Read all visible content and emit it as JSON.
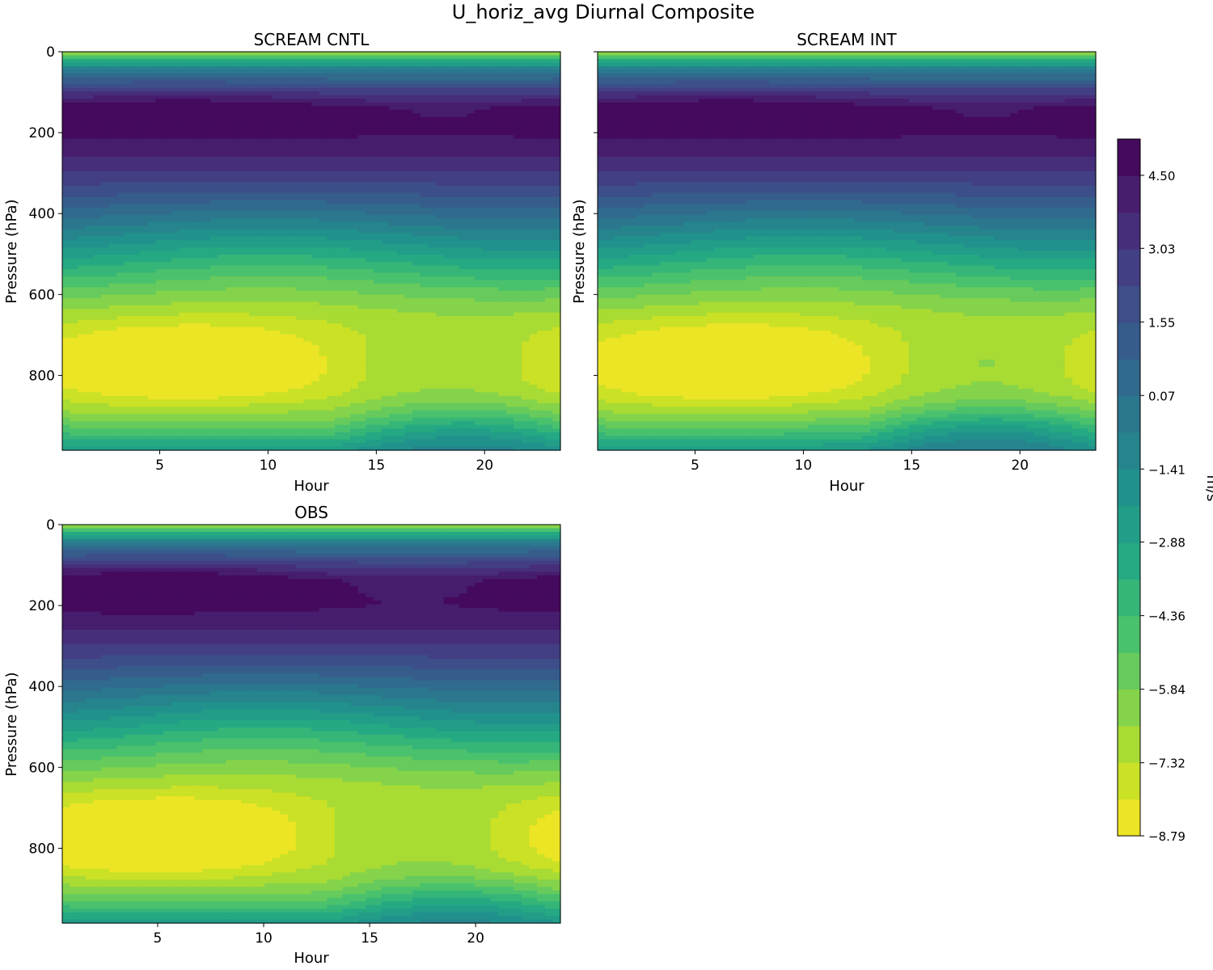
{
  "chart_data": {
    "type": "contourf",
    "title": "U_horiz_avg Diurnal Composite",
    "colorbar": {
      "label": "m/s",
      "tick_labels": [
        "4.50",
        "3.03",
        "1.55",
        "0.07",
        "−1.41",
        "−2.88",
        "−4.36",
        "−5.84",
        "−7.32",
        "−8.79"
      ],
      "tick_values": [
        4.5,
        3.03,
        1.55,
        0.07,
        -1.41,
        -2.88,
        -4.36,
        -5.84,
        -7.32,
        -8.79
      ],
      "range": [
        -8.79,
        5.23
      ],
      "n_levels": 19,
      "colormap": [
        "#440154",
        "#482475",
        "#414487",
        "#355f8d",
        "#2a788e",
        "#21918c",
        "#22a884",
        "#44bf70",
        "#7ad151",
        "#bddf26",
        "#fde725"
      ]
    },
    "panels": [
      {
        "title": "SCREAM CNTL",
        "xlabel": "Hour",
        "ylabel": "Pressure (hPa)",
        "xlim": [
          0.5,
          23.5
        ],
        "ylim": [
          985,
          0
        ],
        "xticks": [
          5,
          10,
          15,
          20
        ],
        "yticks": [
          0,
          200,
          400,
          600,
          800
        ],
        "show_ytick_labels": true,
        "profile": "cntl"
      },
      {
        "title": "SCREAM INT",
        "xlabel": "Hour",
        "ylabel": "Pressure (hPa)",
        "xlim": [
          0.5,
          23.5
        ],
        "ylim": [
          985,
          0
        ],
        "xticks": [
          5,
          10,
          15,
          20
        ],
        "yticks": [
          0,
          200,
          400,
          600,
          800
        ],
        "show_ytick_labels": false,
        "profile": "int"
      },
      {
        "title": "OBS",
        "xlabel": "Hour",
        "ylabel": "Pressure (hPa)",
        "xlim": [
          0.5,
          24
        ],
        "ylim": [
          985,
          0
        ],
        "xticks": [
          5,
          10,
          15,
          20
        ],
        "yticks": [
          0,
          200,
          400,
          600,
          800
        ],
        "show_ytick_labels": true,
        "profile": "obs"
      }
    ],
    "features": {
      "max_speed_level_hPa": 140,
      "min_speed_level_hPa": 775,
      "max_value": 5.23,
      "min_value": -8.79
    }
  }
}
